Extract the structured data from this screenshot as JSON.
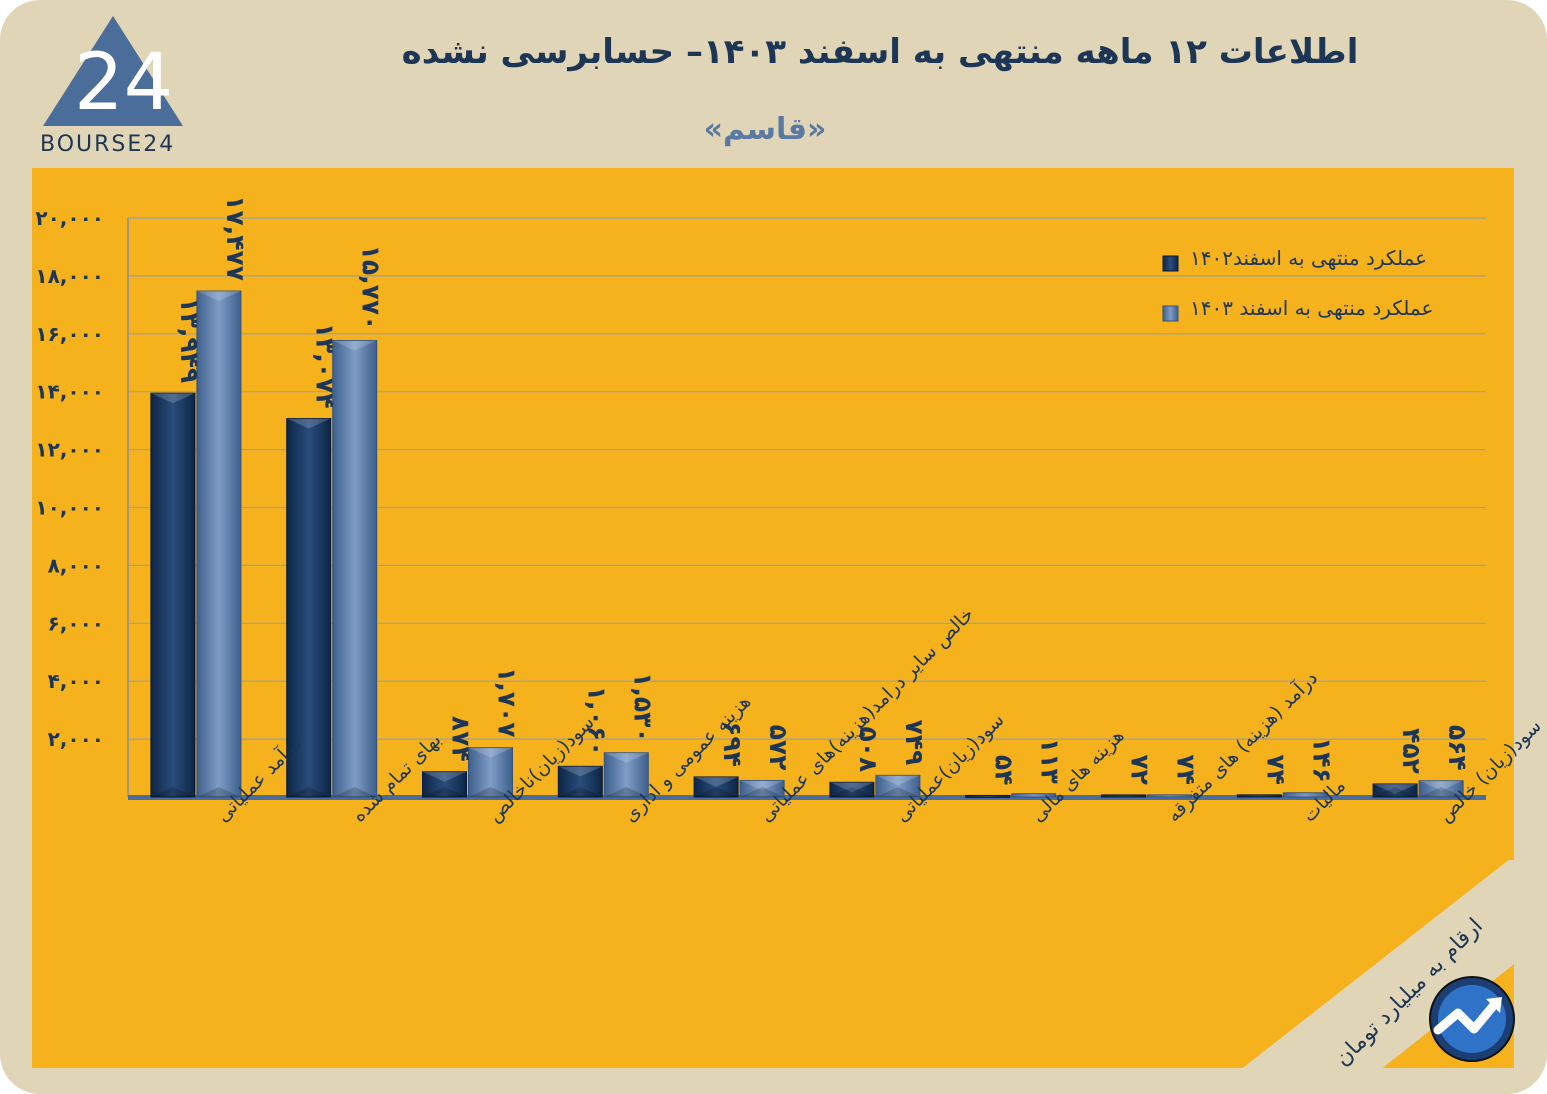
{
  "header": {
    "title": "اطلاعات ۱۲ ماهه منتهی به اسفند  ۱۴۰۳– حسابرسی نشده",
    "subtitle": "«قاسم»",
    "logo_text": "BOURSE24"
  },
  "units_note": "ارقام به میلیارد تومان",
  "colors": {
    "background": "#e0d5b6",
    "panel": "#f5b21d",
    "series_1402": "#17345c",
    "series_1403": "#5b7ba8",
    "text": "#1d3655"
  },
  "chart_data": {
    "type": "bar",
    "categories": [
      "درآمد عملیاتی",
      "بهای تمام شده",
      "سود(زیان)ناخالص",
      "هزینه عمومی و اداری",
      "خالص سایر درامد(هزینه)های عملیاتی",
      "سود(زیان)عملیاتی",
      "هزینه های مالی",
      "درآمد (هزینه) های متفرقه",
      "مالیات",
      "سود(زیان) خالص"
    ],
    "series": [
      {
        "name": "عملکرد منتهی به اسفند۱۴۰۲",
        "values": [
          13949,
          13074,
          874,
          1060,
          694,
          508,
          54,
          72,
          74,
          452
        ],
        "labels": [
          "۱۳,۹۴۹",
          "۱۳,۰۷۴",
          "۸۷۴",
          "۱,۰۶۰",
          "۶۹۴",
          "۵۰۸",
          "۵۴",
          "۷۲",
          "۷۴",
          "۴۵۲"
        ]
      },
      {
        "name": "عملکرد منتهی به اسفند ۱۴۰۳",
        "values": [
          17477,
          15770,
          1707,
          1530,
          572,
          749,
          113,
          74,
          146,
          564
        ],
        "labels": [
          "۱۷,۴۷۷",
          "۱۵,۷۷۰",
          "۱,۷۰۷",
          "۱,۵۳۰",
          "۵۷۲",
          "۷۴۹",
          "۱۱۳",
          "۷۴",
          "۱۴۶",
          "۵۶۴"
        ]
      }
    ],
    "yticks": [
      2000,
      4000,
      6000,
      8000,
      10000,
      12000,
      14000,
      16000,
      18000,
      20000
    ],
    "ytick_labels": [
      "۲,۰۰۰",
      "۴,۰۰۰",
      "۶,۰۰۰",
      "۸,۰۰۰",
      "۱۰,۰۰۰",
      "۱۲,۰۰۰",
      "۱۴,۰۰۰",
      "۱۶,۰۰۰",
      "۱۸,۰۰۰",
      "۲۰,۰۰۰"
    ],
    "ylim": [
      0,
      20000
    ],
    "grid": true,
    "legend_position": "top-right"
  }
}
